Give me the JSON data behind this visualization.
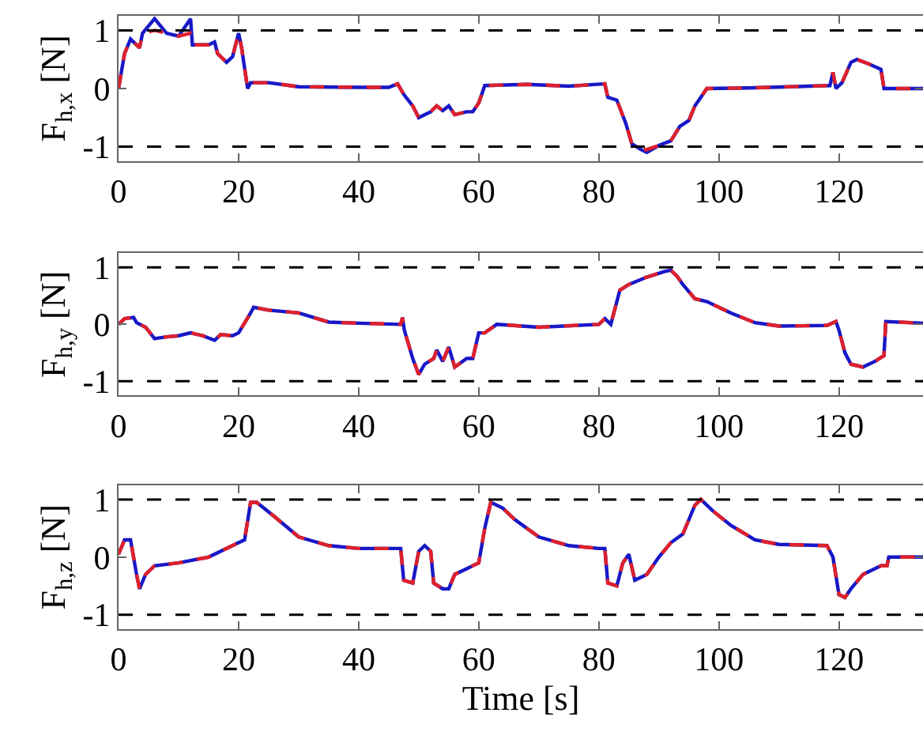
{
  "chart_data": [
    {
      "type": "line",
      "ylabel": "F$_{h,x}$ [N]",
      "xlim": [
        0,
        134
      ],
      "xticks": [
        0,
        20,
        40,
        60,
        80,
        100,
        120
      ],
      "ylim": [
        -1.25,
        1.25
      ],
      "yticks": [
        -1,
        0,
        1
      ],
      "legend": false,
      "x": [
        0,
        1,
        2,
        3.5,
        4,
        6,
        8,
        10,
        12,
        12.3,
        15,
        16,
        16.5,
        18,
        19,
        20,
        20.5,
        21.5,
        22,
        25,
        30,
        40,
        45,
        46.5,
        47.5,
        49,
        50,
        52,
        53,
        54,
        55,
        56,
        58,
        59,
        60,
        61,
        68,
        75,
        81,
        81.5,
        83,
        84.5,
        85.5,
        87,
        88,
        90,
        92,
        93.5,
        95,
        96,
        98,
        105,
        115,
        118.5,
        119,
        119.5,
        120.5,
        122,
        123,
        125,
        127,
        127.5,
        134
      ],
      "series": [
        {
          "color": "#e0202a",
          "line_style": "dashed",
          "values": [
            0,
            0.6,
            0.85,
            0.7,
            0.95,
            1.0,
            0.95,
            0.9,
            0.95,
            0.75,
            0.75,
            0.8,
            0.6,
            0.45,
            0.55,
            0.95,
            0.7,
            0.0,
            0.1,
            0.1,
            0.03,
            0.02,
            0.02,
            0.08,
            -0.1,
            -0.3,
            -0.5,
            -0.4,
            -0.3,
            -0.38,
            -0.3,
            -0.45,
            -0.4,
            -0.4,
            -0.25,
            0.05,
            0.07,
            0.04,
            0.08,
            -0.15,
            -0.2,
            -0.6,
            -0.95,
            -1.05,
            -1.05,
            -0.98,
            -0.9,
            -0.65,
            -0.55,
            -0.3,
            0.0,
            0.01,
            0.04,
            0.05,
            0.28,
            0.0,
            0.1,
            0.45,
            0.5,
            0.42,
            0.33,
            0.0,
            0.0
          ]
        },
        {
          "color": "#1818c8",
          "line_style": "solid",
          "values": [
            0,
            0.6,
            0.85,
            0.7,
            0.95,
            1.2,
            0.95,
            0.9,
            1.2,
            0.75,
            0.75,
            0.8,
            0.6,
            0.45,
            0.55,
            0.95,
            0.7,
            0.0,
            0.1,
            0.1,
            0.03,
            0.02,
            0.02,
            0.08,
            -0.1,
            -0.3,
            -0.5,
            -0.4,
            -0.3,
            -0.38,
            -0.3,
            -0.45,
            -0.4,
            -0.4,
            -0.25,
            0.05,
            0.07,
            0.04,
            0.08,
            -0.15,
            -0.2,
            -0.6,
            -0.95,
            -1.05,
            -1.1,
            -0.98,
            -0.9,
            -0.65,
            -0.55,
            -0.3,
            0.0,
            0.01,
            0.04,
            0.05,
            0.28,
            0.0,
            0.1,
            0.45,
            0.5,
            0.42,
            0.33,
            0.0,
            0.0
          ]
        }
      ],
      "ref_lines": [
        {
          "axis": "y",
          "value": 1,
          "color": "#000000",
          "line_style": "dashed"
        },
        {
          "axis": "y",
          "value": -1,
          "color": "#000000",
          "line_style": "dashed"
        }
      ]
    },
    {
      "type": "line",
      "ylabel": "F$_{h,y}$ [N]",
      "xlim": [
        0,
        134
      ],
      "xticks": [
        0,
        20,
        40,
        60,
        80,
        100,
        120
      ],
      "ylim": [
        -1.25,
        1.25
      ],
      "yticks": [
        -1,
        0,
        1
      ],
      "legend": false,
      "x": [
        0,
        1,
        2.5,
        3,
        4.5,
        6,
        8,
        10,
        12,
        14,
        16,
        17,
        19,
        20,
        22,
        22.5,
        25,
        30,
        35,
        40,
        47,
        47.3,
        47.6,
        49,
        50,
        51,
        52.5,
        53,
        54,
        55,
        56,
        58,
        59,
        60,
        61,
        63,
        70,
        80,
        81,
        82,
        83.5,
        85,
        88,
        91,
        92,
        93,
        94,
        96,
        98,
        102,
        106,
        110,
        118,
        119.5,
        120,
        121,
        122,
        124,
        126,
        127.5,
        127.8,
        134
      ],
      "series": [
        {
          "color": "#e0202a",
          "line_style": "dashed",
          "values": [
            0,
            0.1,
            0.12,
            0.03,
            -0.05,
            -0.25,
            -0.22,
            -0.2,
            -0.15,
            -0.2,
            -0.28,
            -0.18,
            -0.2,
            -0.15,
            0.2,
            0.3,
            0.25,
            0.2,
            0.04,
            0.02,
            0.0,
            0.12,
            -0.1,
            -0.6,
            -0.88,
            -0.7,
            -0.6,
            -0.45,
            -0.65,
            -0.4,
            -0.75,
            -0.6,
            -0.6,
            -0.15,
            -0.15,
            0.0,
            -0.05,
            0.0,
            0.1,
            0.0,
            0.6,
            0.7,
            0.83,
            0.93,
            0.95,
            0.85,
            0.7,
            0.45,
            0.4,
            0.2,
            0.03,
            -0.03,
            -0.02,
            0.05,
            -0.1,
            -0.5,
            -0.7,
            -0.75,
            -0.65,
            -0.55,
            0.05,
            0.02
          ]
        },
        {
          "color": "#1818c8",
          "line_style": "solid",
          "values": [
            0,
            0.1,
            0.12,
            0.03,
            -0.05,
            -0.25,
            -0.22,
            -0.2,
            -0.15,
            -0.2,
            -0.28,
            -0.18,
            -0.2,
            -0.15,
            0.2,
            0.3,
            0.25,
            0.2,
            0.04,
            0.02,
            0.0,
            0.12,
            -0.1,
            -0.6,
            -0.88,
            -0.7,
            -0.6,
            -0.45,
            -0.65,
            -0.4,
            -0.75,
            -0.6,
            -0.6,
            -0.15,
            -0.15,
            0.0,
            -0.05,
            0.0,
            0.1,
            0.0,
            0.6,
            0.7,
            0.83,
            0.93,
            0.95,
            0.85,
            0.7,
            0.45,
            0.4,
            0.2,
            0.03,
            -0.03,
            -0.02,
            0.05,
            -0.1,
            -0.5,
            -0.7,
            -0.75,
            -0.65,
            -0.55,
            0.05,
            0.02
          ]
        }
      ],
      "ref_lines": [
        {
          "axis": "y",
          "value": 1,
          "color": "#000000",
          "line_style": "dashed"
        },
        {
          "axis": "y",
          "value": -1,
          "color": "#000000",
          "line_style": "dashed"
        }
      ]
    },
    {
      "type": "line",
      "xlabel": "Time [s]",
      "ylabel": "F$_{h,z}$ [N]",
      "xlim": [
        0,
        134
      ],
      "xticks": [
        0,
        20,
        40,
        60,
        80,
        100,
        120
      ],
      "ylim": [
        -1.25,
        1.25
      ],
      "yticks": [
        -1,
        0,
        1
      ],
      "legend": false,
      "x": [
        0,
        1,
        2,
        3,
        3.5,
        4.5,
        6,
        10,
        15,
        20,
        21,
        22,
        23,
        26,
        30,
        35,
        40,
        47,
        47.5,
        49,
        50,
        51,
        52,
        52.5,
        54,
        55,
        56,
        58,
        60,
        61,
        62,
        64,
        66,
        70,
        75,
        80,
        81,
        81.5,
        83,
        84,
        85,
        86,
        88,
        90,
        92,
        94,
        96,
        97,
        99,
        102,
        106,
        110,
        118,
        119,
        120,
        121,
        122,
        124,
        127,
        128,
        128.3,
        134
      ],
      "series": [
        {
          "color": "#e0202a",
          "line_style": "dashed",
          "values": [
            0.05,
            0.3,
            0.3,
            -0.3,
            -0.55,
            -0.3,
            -0.15,
            -0.1,
            0.0,
            0.25,
            0.3,
            0.95,
            0.95,
            0.7,
            0.35,
            0.2,
            0.15,
            0.15,
            -0.4,
            -0.45,
            0.1,
            0.2,
            0.1,
            -0.45,
            -0.55,
            -0.55,
            -0.3,
            -0.2,
            -0.1,
            0.5,
            0.95,
            0.85,
            0.65,
            0.35,
            0.2,
            0.15,
            0.15,
            -0.45,
            -0.5,
            -0.1,
            0.05,
            -0.4,
            -0.3,
            0.0,
            0.25,
            0.4,
            0.9,
            1.0,
            0.8,
            0.55,
            0.3,
            0.22,
            0.2,
            0.0,
            -0.65,
            -0.7,
            -0.55,
            -0.3,
            -0.15,
            -0.15,
            0.0,
            0.0
          ]
        },
        {
          "color": "#1818c8",
          "line_style": "solid",
          "values": [
            0.05,
            0.3,
            0.3,
            -0.3,
            -0.55,
            -0.3,
            -0.15,
            -0.1,
            0.0,
            0.25,
            0.3,
            0.95,
            0.95,
            0.7,
            0.35,
            0.2,
            0.15,
            0.15,
            -0.4,
            -0.45,
            0.1,
            0.2,
            0.1,
            -0.45,
            -0.55,
            -0.55,
            -0.3,
            -0.2,
            -0.1,
            0.5,
            0.95,
            0.85,
            0.65,
            0.35,
            0.2,
            0.15,
            0.15,
            -0.45,
            -0.5,
            -0.1,
            0.05,
            -0.4,
            -0.3,
            0.0,
            0.25,
            0.4,
            0.9,
            1.0,
            0.8,
            0.55,
            0.3,
            0.22,
            0.2,
            0.0,
            -0.65,
            -0.7,
            -0.55,
            -0.3,
            -0.15,
            -0.15,
            0.0,
            0.0
          ]
        }
      ],
      "ref_lines": [
        {
          "axis": "y",
          "value": 1,
          "color": "#000000",
          "line_style": "dashed"
        },
        {
          "axis": "y",
          "value": -1,
          "color": "#000000",
          "line_style": "dashed"
        }
      ]
    }
  ]
}
